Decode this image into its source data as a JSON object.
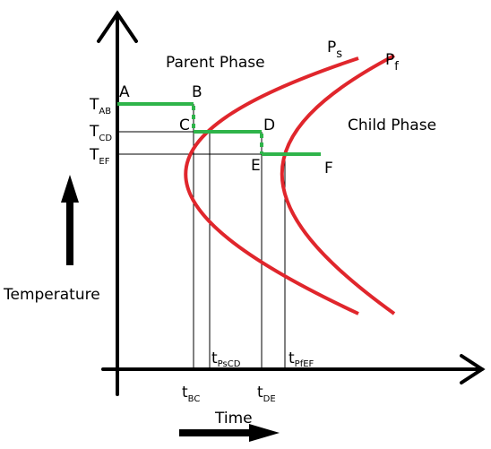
{
  "regions": {
    "parent": "Parent Phase",
    "child": "Child Phase"
  },
  "curves": [
    {
      "main": "P",
      "sub": "s"
    },
    {
      "main": "P",
      "sub": "f"
    }
  ],
  "axes": {
    "y": "Temperature",
    "x": "Time"
  },
  "temperature_levels": [
    {
      "main": "T",
      "sub": "AB"
    },
    {
      "main": "T",
      "sub": "CD"
    },
    {
      "main": "T",
      "sub": "EF"
    }
  ],
  "points": [
    "A",
    "B",
    "C",
    "D",
    "E",
    "F"
  ],
  "time_marks": [
    {
      "main": "t",
      "sub": "BC"
    },
    {
      "main": "t",
      "sub": "PsCD"
    },
    {
      "main": "t",
      "sub": "DE"
    },
    {
      "main": "t",
      "sub": "PfEF"
    }
  ]
}
